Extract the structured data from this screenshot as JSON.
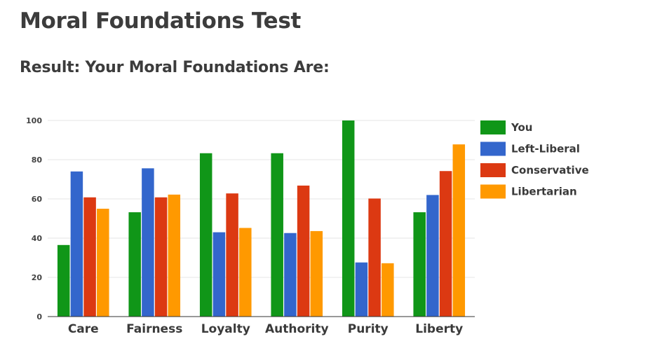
{
  "page": {
    "title": "Moral Foundations Test",
    "subtitle": "Result: Your Moral Foundations Are:"
  },
  "chart_data": {
    "type": "bar",
    "categories": [
      "Care",
      "Fairness",
      "Loyalty",
      "Authority",
      "Purity",
      "Liberty"
    ],
    "series": [
      {
        "name": "You",
        "color": "#109618",
        "values": [
          36.5,
          53.2,
          83.3,
          83.3,
          100,
          53.2
        ]
      },
      {
        "name": "Left-Liberal",
        "color": "#3366cc",
        "values": [
          74,
          75.6,
          43,
          42.6,
          27.6,
          62
        ]
      },
      {
        "name": "Conservative",
        "color": "#dc3912",
        "values": [
          60.8,
          60.8,
          62.8,
          66.8,
          60.2,
          74.2
        ]
      },
      {
        "name": "Libertarian",
        "color": "#ff9900",
        "values": [
          55,
          62.2,
          45.2,
          43.6,
          27.2,
          87.8
        ]
      }
    ],
    "ylim": [
      0,
      100
    ],
    "yticks": [
      0,
      20,
      40,
      60,
      80,
      100
    ],
    "grid": true,
    "legend": "right"
  }
}
